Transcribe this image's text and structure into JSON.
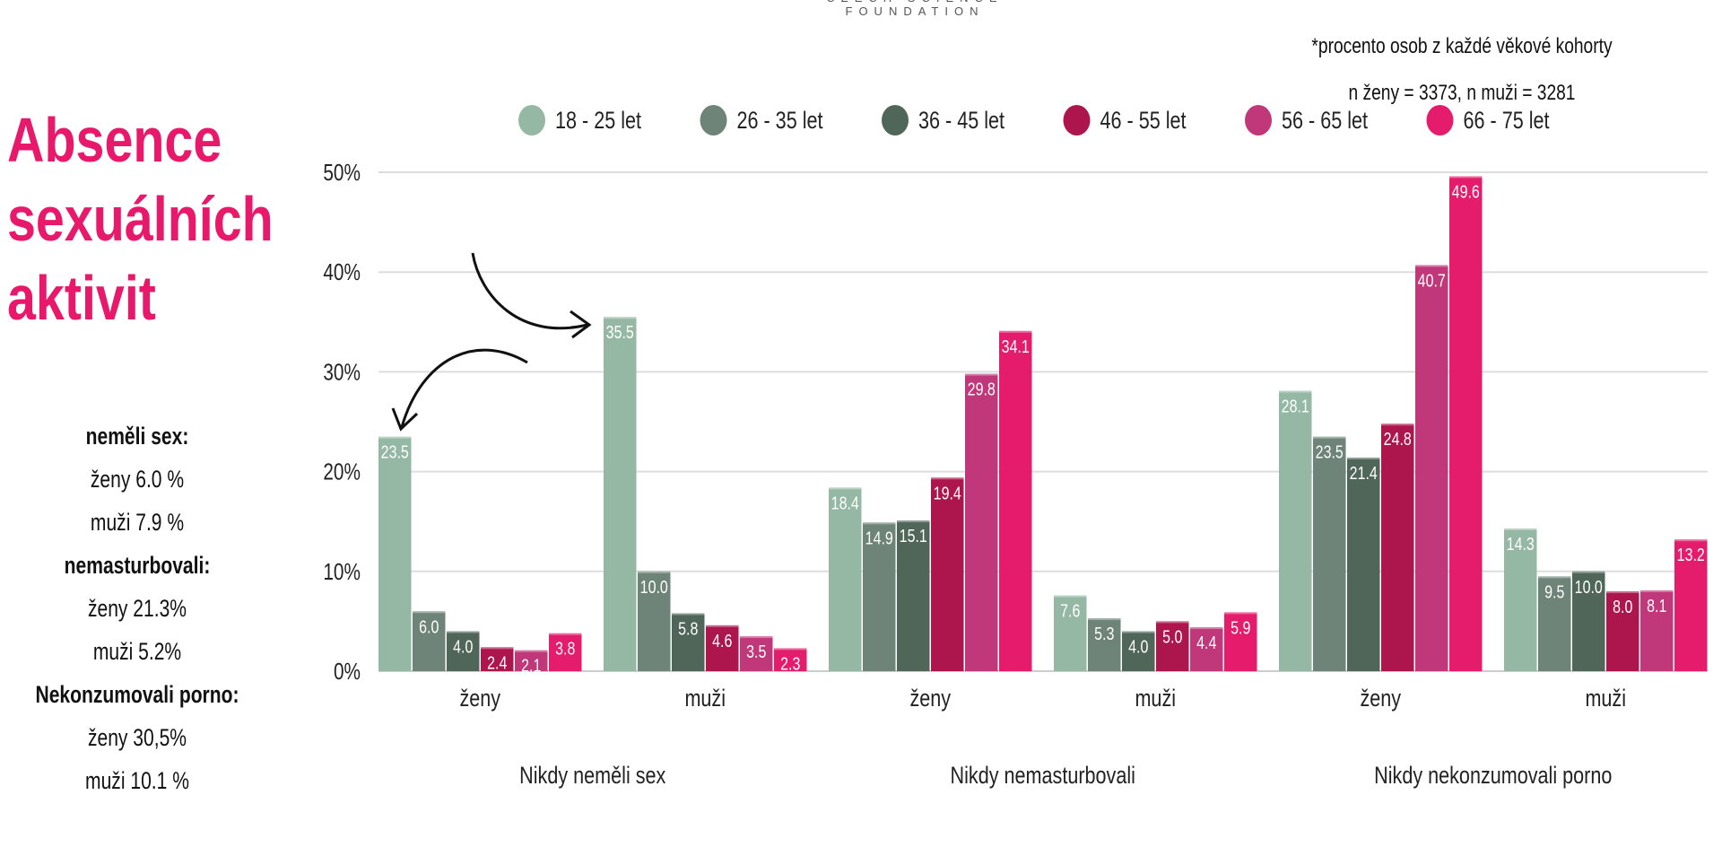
{
  "header": {
    "foundation": "CZECH SCIENCE FOUNDATION"
  },
  "title_lines": [
    "Absence",
    "sexuálních",
    "aktivit"
  ],
  "summary": [
    {
      "text": "neměli sex:",
      "heading": true
    },
    {
      "text": "ženy 6.0 %",
      "heading": false
    },
    {
      "text": "muži 7.9 %",
      "heading": false
    },
    {
      "text": "nemasturbovali:",
      "heading": true
    },
    {
      "text": "ženy 21.3%",
      "heading": false
    },
    {
      "text": "muži 5.2%",
      "heading": false
    },
    {
      "text": "Nekonzumovali porno:",
      "heading": true
    },
    {
      "text": "ženy 30,5%",
      "heading": false
    },
    {
      "text": "muži 10.1 %",
      "heading": false
    }
  ],
  "notes": [
    "*procento osob z každé věkové kohorty",
    "n ženy = 3373, n muži = 3281"
  ],
  "chart_data": {
    "type": "bar",
    "ylim": [
      0,
      50
    ],
    "yticks": [
      "0%",
      "10%",
      "20%",
      "30%",
      "40%",
      "50%"
    ],
    "grid": true,
    "legend_placement": "top",
    "groups": [
      {
        "label": "Nikdy neměli sex",
        "categories": [
          "ženy",
          "muži"
        ]
      },
      {
        "label": "Nikdy nemasturbovali",
        "categories": [
          "ženy",
          "muži"
        ]
      },
      {
        "label": "Nikdy nekonzumovali porno",
        "categories": [
          "ženy",
          "muži"
        ]
      }
    ],
    "categories": [
      "ženy",
      "muži",
      "ženy",
      "muži",
      "ženy",
      "muži"
    ],
    "series": [
      {
        "name": "18 - 25 let",
        "color": "#95b8a4",
        "values": [
          23.5,
          35.5,
          18.4,
          7.6,
          28.1,
          14.3
        ]
      },
      {
        "name": "26 - 35 let",
        "color": "#6e8478",
        "values": [
          6.0,
          10.0,
          14.9,
          5.3,
          23.5,
          9.5
        ]
      },
      {
        "name": "36 - 45 let",
        "color": "#4f6659",
        "values": [
          4.0,
          5.8,
          15.1,
          4.0,
          21.4,
          10.0
        ]
      },
      {
        "name": "46 - 55 let",
        "color": "#ad154d",
        "values": [
          2.4,
          4.6,
          19.4,
          5.0,
          24.8,
          8.0
        ]
      },
      {
        "name": "56 - 65 let",
        "color": "#c0377a",
        "values": [
          2.1,
          3.5,
          29.8,
          4.4,
          40.7,
          8.1
        ]
      },
      {
        "name": "66 - 75 let",
        "color": "#e51b6b",
        "values": [
          3.8,
          2.3,
          34.1,
          5.9,
          49.6,
          13.2
        ]
      }
    ]
  }
}
